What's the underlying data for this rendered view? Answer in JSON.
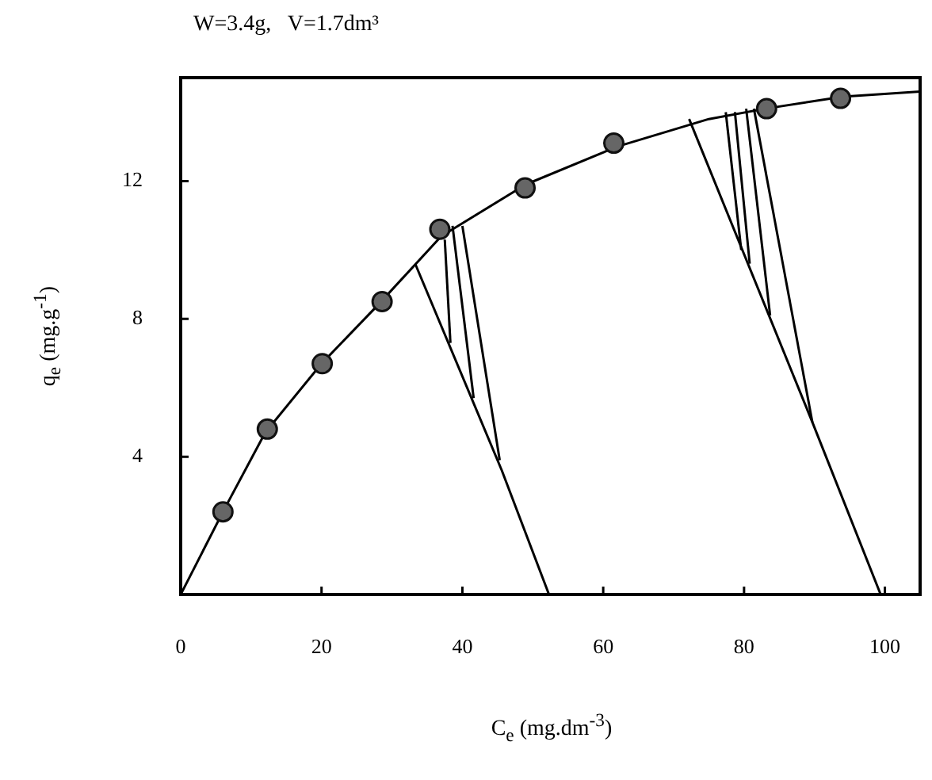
{
  "chart_data": {
    "type": "line",
    "title": "W=3.4g,   V=1.7dm³",
    "xlabel": "C$_{e}$ (mg.dm$^{-3}$)",
    "ylabel": "q$_{e}$ (mg.g$^{-1}$)",
    "xlim": [
      0,
      105
    ],
    "xticks": [
      0,
      20,
      40,
      60,
      80,
      100
    ],
    "ylim": [
      0,
      15
    ],
    "yticks": [
      4,
      8,
      12
    ],
    "legend": false,
    "series": [
      {
        "type": "scatter",
        "marker": "circle",
        "color": "#666666",
        "x": [
          6.0,
          12.3,
          20.1,
          28.6,
          36.8,
          48.9,
          61.5,
          83.2,
          93.7
        ],
        "values": [
          2.4,
          4.8,
          6.7,
          8.5,
          10.6,
          11.8,
          13.1,
          14.1,
          14.4
        ]
      },
      {
        "color": "#000000",
        "x": [
          0,
          6,
          12,
          20,
          28,
          37,
          49,
          62,
          75,
          83,
          94,
          105
        ],
        "values": [
          0,
          2.4,
          4.7,
          6.7,
          8.4,
          10.4,
          11.9,
          13.0,
          13.8,
          14.1,
          14.45,
          14.6
        ]
      },
      {
        "color": "#000000",
        "x": [
          33.3,
          45.6,
          52.3
        ],
        "values": [
          9.6,
          3.6,
          0
        ]
      },
      {
        "color": "#000000",
        "x": [
          37.5,
          38.3
        ],
        "values": [
          10.3,
          7.3
        ]
      },
      {
        "color": "#000000",
        "x": [
          38.6,
          41.6
        ],
        "values": [
          10.7,
          5.7
        ]
      },
      {
        "color": "#000000",
        "x": [
          40.0,
          45.3
        ],
        "values": [
          10.7,
          3.9
        ]
      },
      {
        "color": "#000000",
        "x": [
          72.2,
          89.7,
          99.4
        ],
        "values": [
          13.8,
          5.0,
          0
        ]
      },
      {
        "color": "#000000",
        "x": [
          77.4,
          79.6
        ],
        "values": [
          14.0,
          10.0
        ]
      },
      {
        "color": "#000000",
        "x": [
          78.7,
          80.8
        ],
        "values": [
          14.0,
          9.6
        ]
      },
      {
        "color": "#000000",
        "x": [
          80.3,
          83.7
        ],
        "values": [
          14.1,
          8.1
        ]
      },
      {
        "color": "#000000",
        "x": [
          81.4,
          89.7
        ],
        "values": [
          14.1,
          5.0
        ]
      }
    ]
  }
}
